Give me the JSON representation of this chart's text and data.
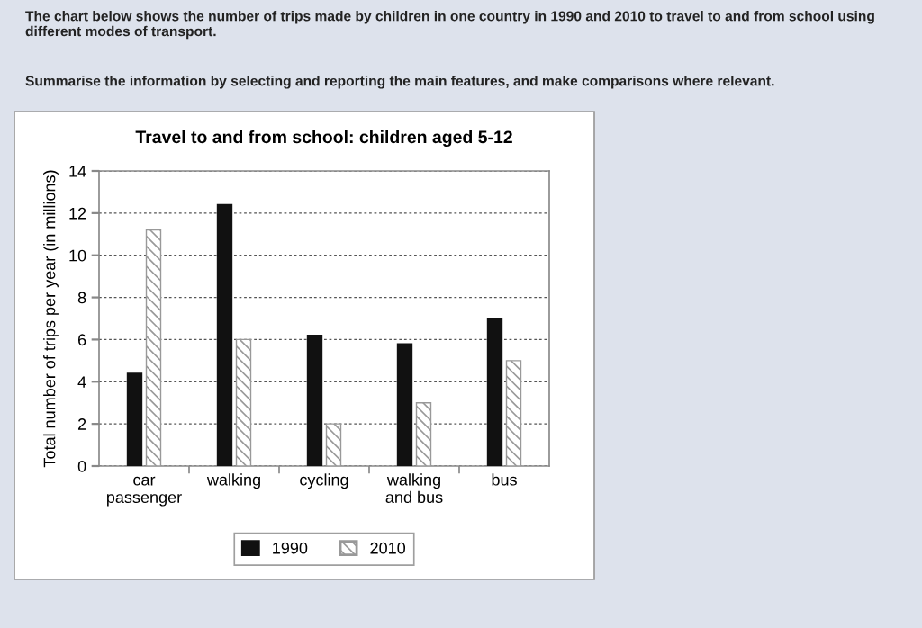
{
  "chart_data": {
    "type": "bar",
    "title": "Travel to and from school: children aged 5-12",
    "ylabel": "Total number of trips per year (in millions)",
    "categories": [
      "car\npassenger",
      "walking",
      "cycling",
      "walking\nand bus",
      "bus"
    ],
    "series": [
      {
        "name": "1990",
        "color": "#111111",
        "values": [
          4.4,
          12.4,
          6.2,
          5.8,
          7.0
        ]
      },
      {
        "name": "2010",
        "color": "#999999",
        "values": [
          11.2,
          6.0,
          2.0,
          3.0,
          5.0
        ]
      }
    ],
    "ylim": [
      0,
      14
    ],
    "yticks": [
      0,
      2,
      4,
      6,
      8,
      10,
      12,
      14
    ],
    "grid": "y",
    "legend": "bottom",
    "annotations": [
      "The chart below shows the number of trips made by children in one country in 1990 and 2010 to travel to and from school using different modes of transport.",
      "Summarise the information by selecting and reporting the main features, and make comparisons where relevant."
    ]
  }
}
